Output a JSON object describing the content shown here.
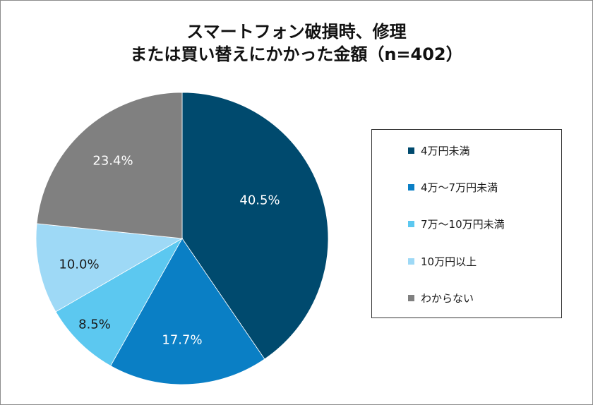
{
  "chart_data": {
    "type": "pie",
    "title": [
      "スマートフォン破損時、修理",
      "または買い替えにかかった金額（n=402）"
    ],
    "categories": [
      "4万円未満",
      "4万～7万円未満",
      "7万～10万円未満",
      "10万円以上",
      "わからない"
    ],
    "values": [
      40.5,
      17.7,
      8.5,
      10.0,
      23.4
    ],
    "unit": "%",
    "colors": [
      "#004a6e",
      "#0a7fc5",
      "#5cc8f0",
      "#9ed9f6",
      "#808080"
    ],
    "legend_position": "right"
  }
}
